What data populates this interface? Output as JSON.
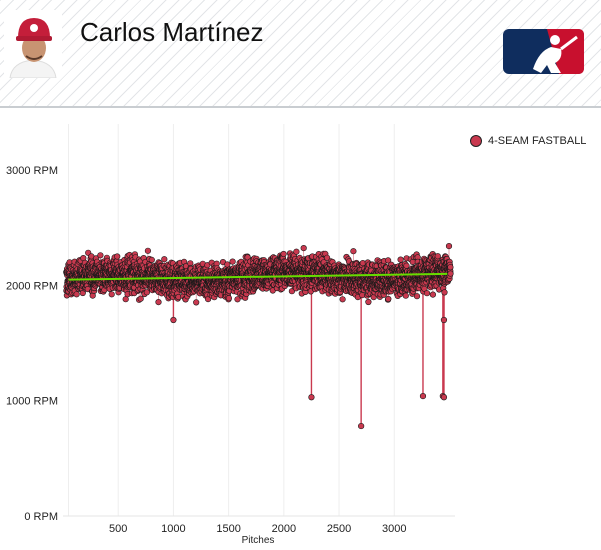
{
  "header": {
    "player_name": "Carlos Martínez",
    "logo_icon": "mlb-logo-icon",
    "avatar_icon": "player-headshot-icon"
  },
  "colors": {
    "marker_fill": "#c9394f",
    "marker_stroke": "#1a1a1a",
    "trend_line": "#66dd00",
    "grid": "#eeeeee",
    "logo_blue": "#0f2d5e",
    "logo_red": "#c8102e"
  },
  "chart_data": {
    "type": "scatter",
    "title": "",
    "xlabel": "Pitches",
    "ylabel": "",
    "xlim": [
      0,
      3550
    ],
    "ylim": [
      0,
      3400
    ],
    "x_ticks": [
      500,
      1000,
      1500,
      2000,
      2500,
      3000
    ],
    "x_tick_labels": [
      "500",
      "1000",
      "1500",
      "2000",
      "2500",
      "3000"
    ],
    "y_ticks": [
      0,
      1000,
      2000,
      3000
    ],
    "y_tick_labels": [
      "0 RPM",
      "1000 RPM",
      "2000 RPM",
      "3000 RPM"
    ],
    "grid": true,
    "legend_position": "top-right",
    "series": [
      {
        "name": "4-SEAM FASTBALL",
        "n_points": 3480,
        "typical_range": [
          1800,
          2450
        ],
        "mean_start": 2050,
        "mean_end": 2100,
        "outliers": [
          {
            "x": 1000,
            "y": 1700
          },
          {
            "x": 2250,
            "y": 1030
          },
          {
            "x": 2700,
            "y": 780
          },
          {
            "x": 3260,
            "y": 1040
          },
          {
            "x": 3440,
            "y": 1040
          },
          {
            "x": 3450,
            "y": 1030
          },
          {
            "x": 3450,
            "y": 1700
          }
        ]
      }
    ],
    "trend_line": {
      "x": [
        50,
        3480
      ],
      "y": [
        2050,
        2100
      ]
    }
  }
}
